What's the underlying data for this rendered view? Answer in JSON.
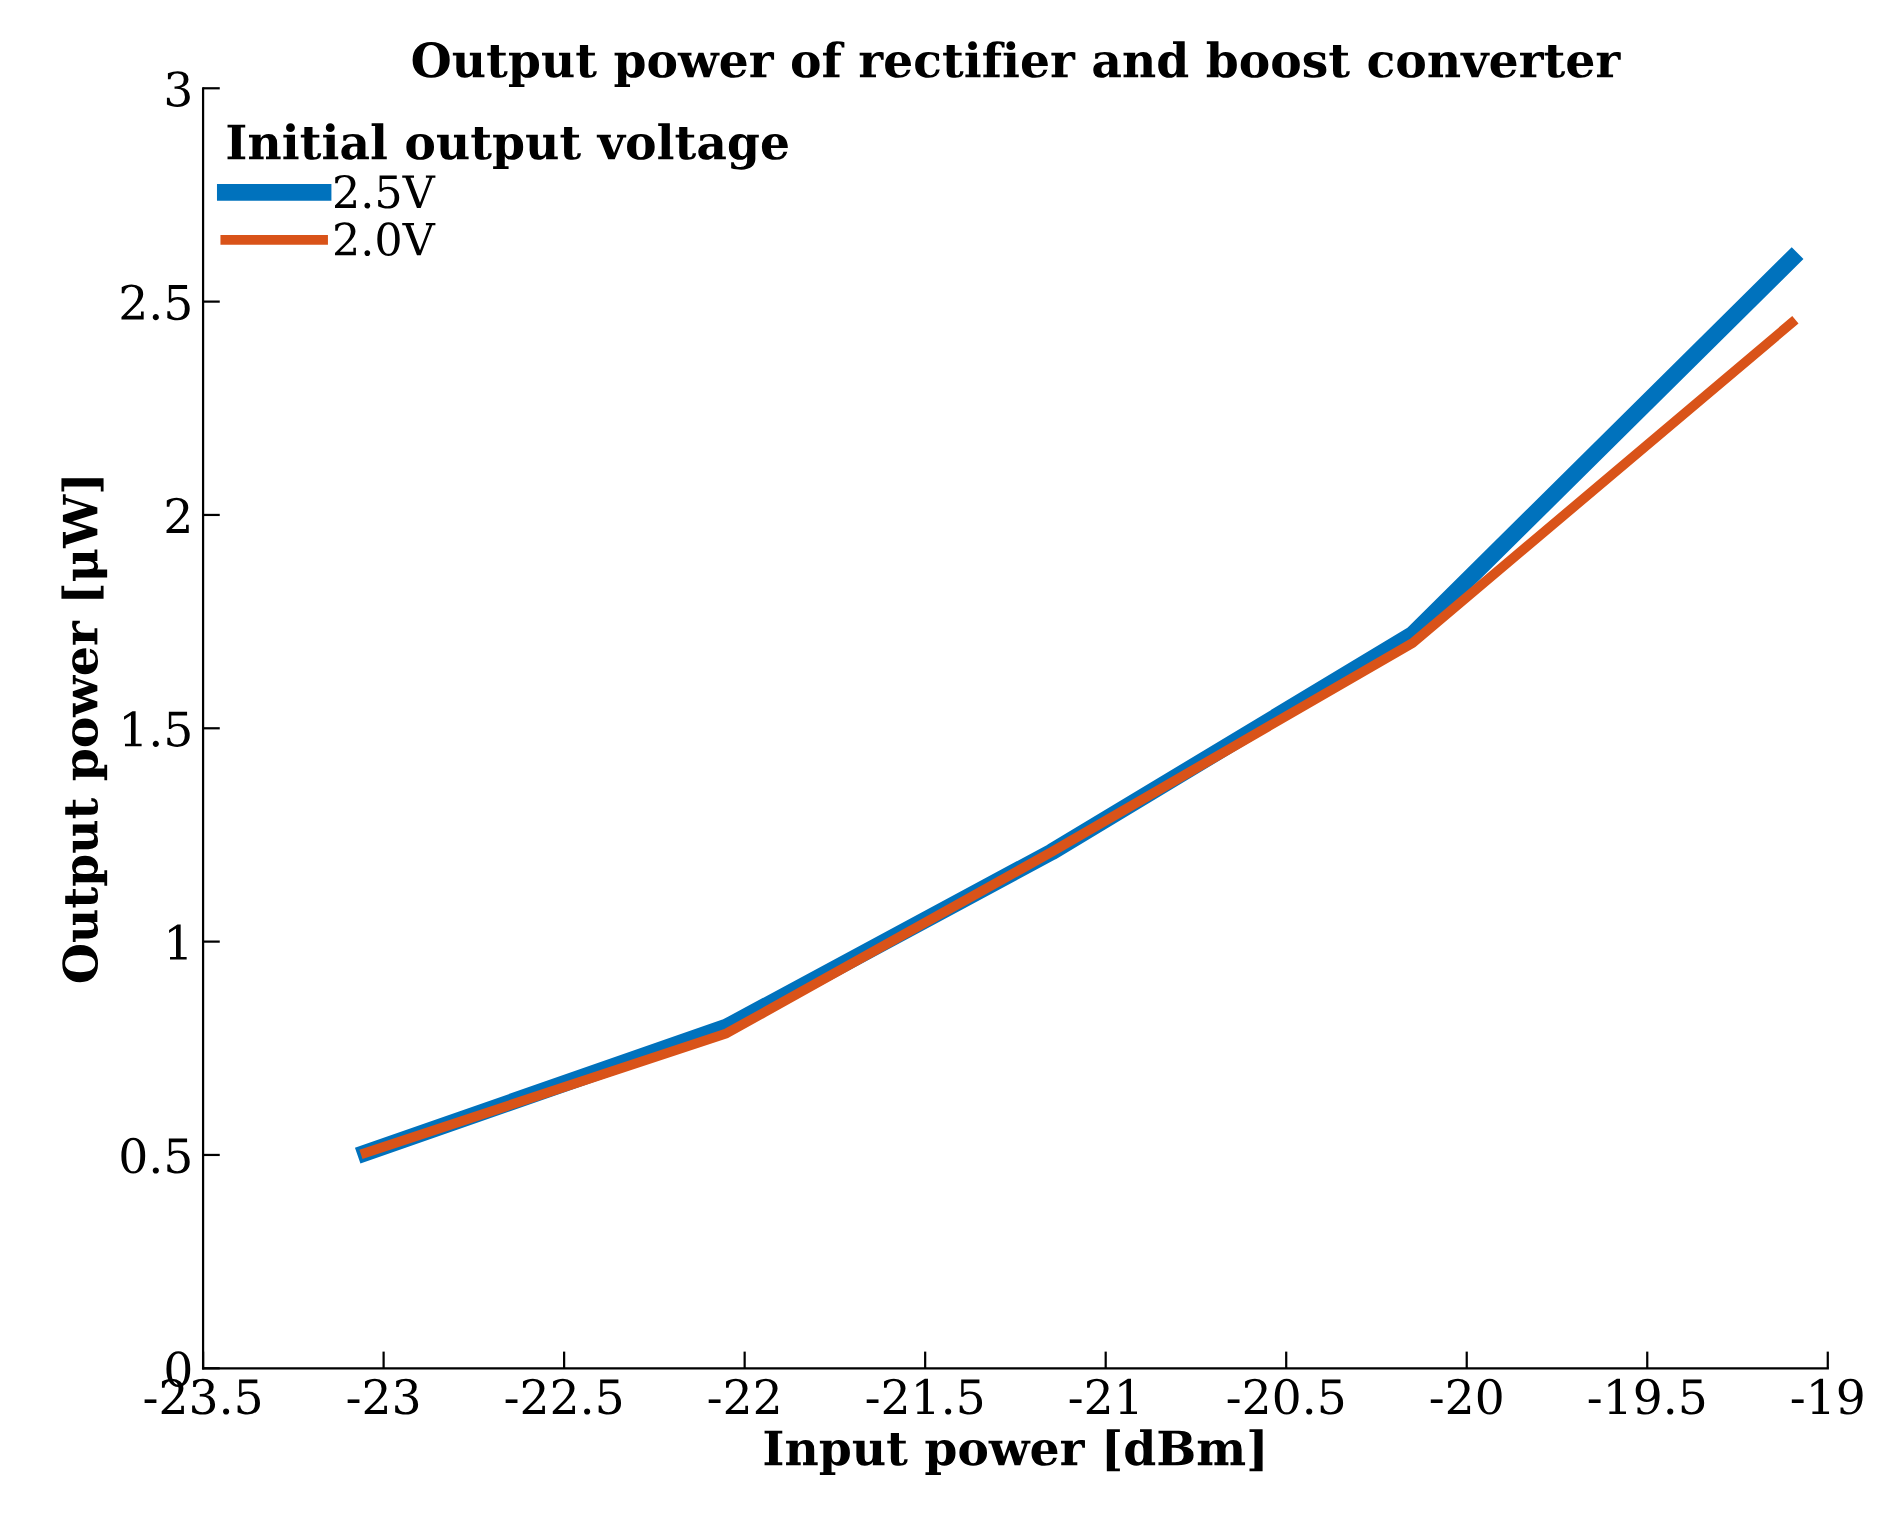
{
  "chart_data": {
    "type": "line",
    "title": "Output power of rectifier and boost converter",
    "xlabel": "Input power [dBm]",
    "ylabel": "Output power [μW]",
    "legend_title": "Initial output voltage",
    "x": [
      -23.05,
      -22.05,
      -21.15,
      -20.15,
      -19.1
    ],
    "series": [
      {
        "name": "2.5V",
        "color": "#0072bd",
        "values": [
          0.505,
          0.8,
          1.21,
          1.72,
          2.6
        ]
      },
      {
        "name": "2.0V",
        "color": "#d95319",
        "values": [
          0.505,
          0.785,
          1.21,
          1.7,
          2.45
        ]
      }
    ],
    "xlim": [
      -23.5,
      -19
    ],
    "xticks": [
      -23.5,
      -23,
      -22.5,
      -22,
      -21.5,
      -21,
      -20.5,
      -20,
      -19.5,
      -19
    ],
    "ylim": [
      0,
      3
    ],
    "yticks": [
      0,
      0.5,
      1,
      1.5,
      2,
      2.5,
      3
    ],
    "grid": false,
    "legend": "top left",
    "marker": "none",
    "line_style": "solid"
  }
}
